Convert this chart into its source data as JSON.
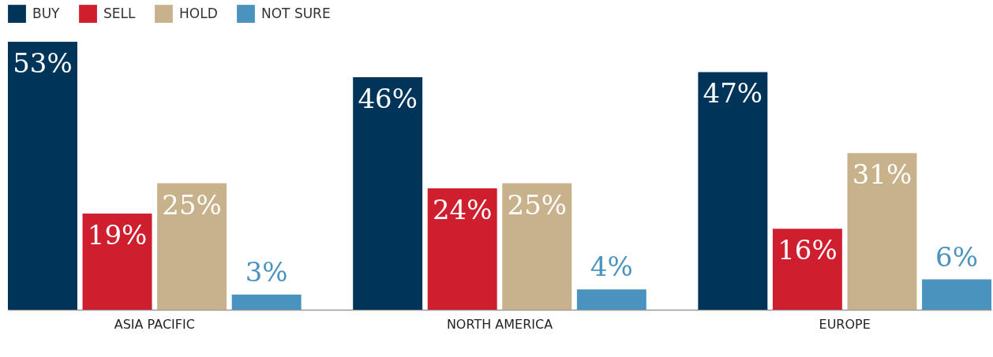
{
  "chart_data": {
    "type": "bar",
    "categories": [
      "ASIA PACIFIC",
      "NORTH AMERICA",
      "EUROPE"
    ],
    "series": [
      {
        "name": "BUY",
        "color": "#003459",
        "values": [
          53,
          46,
          47
        ],
        "value_labels": [
          "53%",
          "46%",
          "47%"
        ]
      },
      {
        "name": "SELL",
        "color": "#cf1f2e",
        "values": [
          19,
          24,
          16
        ],
        "value_labels": [
          "19%",
          "24%",
          "16%"
        ]
      },
      {
        "name": "HOLD",
        "color": "#c8b28c",
        "values": [
          25,
          25,
          31
        ],
        "value_labels": [
          "25%",
          "25%",
          "31%"
        ]
      },
      {
        "name": "NOT SURE",
        "color": "#4a93bf",
        "values": [
          3,
          4,
          6
        ],
        "value_labels": [
          "3%",
          "4%",
          "6%"
        ]
      }
    ],
    "legend": "top left",
    "grid": false
  }
}
